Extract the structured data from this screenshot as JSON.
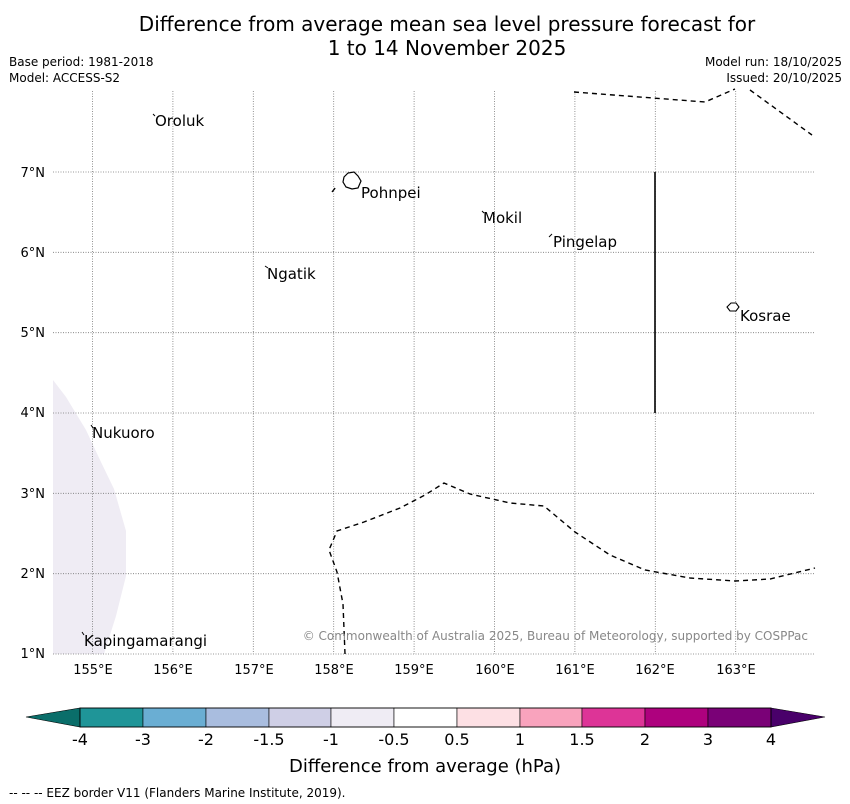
{
  "title_line1": "Difference from average mean sea level pressure forecast for",
  "title_line2": "1 to 14 November 2025",
  "meta": {
    "base_period": "Base period: 1981-2018",
    "model": "Model: ACCESS-S2",
    "model_run": "Model run: 18/10/2025",
    "issued": "Issued: 20/10/2025"
  },
  "lat_labels": [
    "7°N",
    "6°N",
    "5°N",
    "4°N",
    "3°N",
    "2°N",
    "1°N"
  ],
  "lon_labels": [
    "155°E",
    "156°E",
    "157°E",
    "158°E",
    "159°E",
    "160°E",
    "161°E",
    "162°E",
    "163°E"
  ],
  "places": [
    "Oroluk",
    "Pohnpei",
    "Mokil",
    "Pingelap",
    "Ngatik",
    "Kosrae",
    "Nukuoro",
    "Kapingamarangi"
  ],
  "copyright": "© Commonwealth of Australia 2025, Bureau of Meteorology, supported by COSPPac",
  "colorbar": {
    "labels": [
      "-4",
      "-3",
      "-2",
      "-1.5",
      "-1",
      "-0.5",
      "0.5",
      "1",
      "1.5",
      "2",
      "3",
      "4"
    ],
    "colors": [
      "#0a6e6a",
      "#1f9598",
      "#6aaed3",
      "#a9bddf",
      "#cfcfe6",
      "#efecf4",
      "#ffffff",
      "#fde0e4",
      "#f9a3bd",
      "#dd3497",
      "#ae017e",
      "#7a0177",
      "#49006a"
    ],
    "title": "Difference from average (hPa)"
  },
  "footer": "--  --  -- EEZ border V11 (Flanders Marine Institute, 2019)."
}
